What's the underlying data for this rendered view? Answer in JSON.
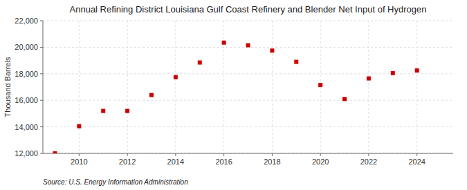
{
  "chart_data": {
    "type": "scatter",
    "title": "Annual Refining District Louisiana Gulf Coast Refinery and Blender Net Input of Hydrogen",
    "ylabel": "Thousand Barrels",
    "annotations": [
      "Source: U.S. Energy Information Administration"
    ],
    "x": [
      2009,
      2010,
      2011,
      2012,
      2013,
      2014,
      2015,
      2016,
      2017,
      2018,
      2019,
      2020,
      2021,
      2022,
      2023,
      2024
    ],
    "values": [
      12000,
      14050,
      15200,
      15200,
      16400,
      17750,
      18850,
      20350,
      20150,
      19750,
      18900,
      17150,
      16100,
      17650,
      18050,
      18250
    ],
    "color": "#cc0000",
    "marker": "square",
    "xlim": [
      2008.5,
      2025.5
    ],
    "ylim": [
      12000,
      22000
    ],
    "xticks": [
      2010,
      2012,
      2014,
      2016,
      2018,
      2020,
      2022,
      2024
    ],
    "yticks": [
      {
        "value": 12000,
        "label": "12,000"
      },
      {
        "value": 14000,
        "label": "14,000"
      },
      {
        "value": 16000,
        "label": "16,000"
      },
      {
        "value": 18000,
        "label": "18,000"
      },
      {
        "value": 20000,
        "label": "20,000"
      },
      {
        "value": 22000,
        "label": "22,000"
      }
    ],
    "grid": true
  }
}
